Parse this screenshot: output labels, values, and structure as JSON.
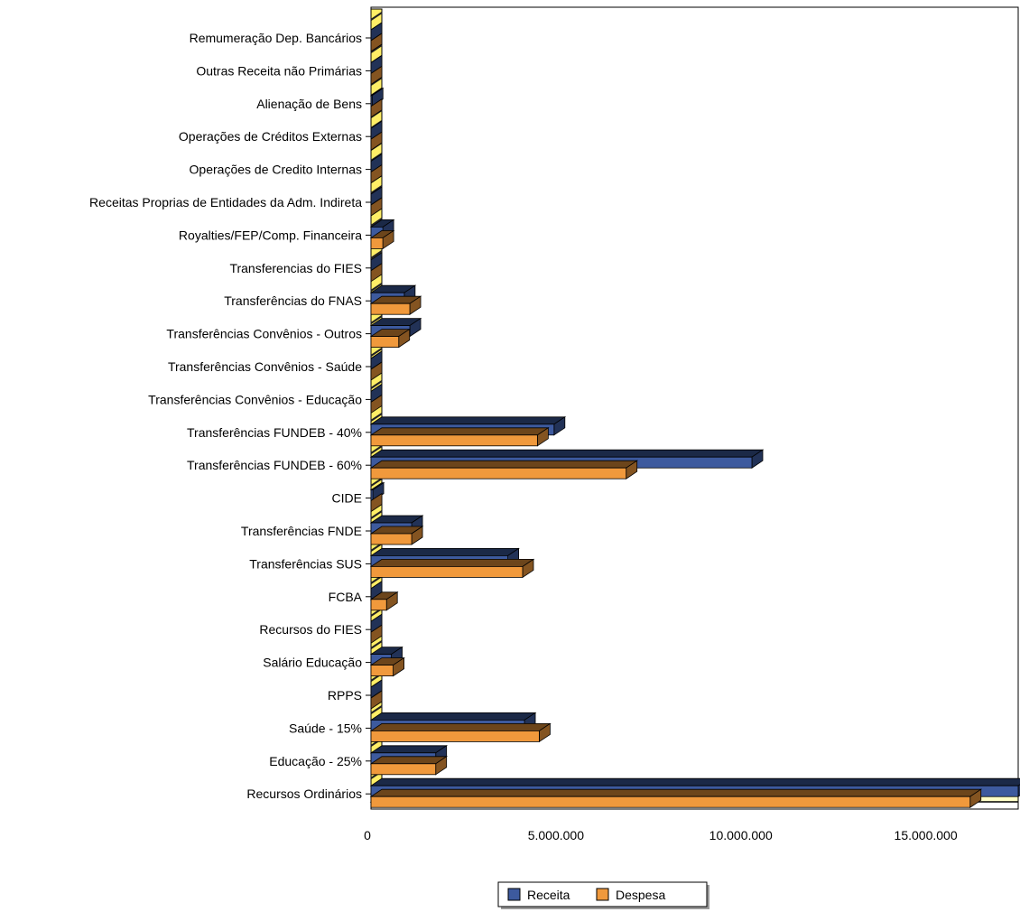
{
  "chart_data": {
    "type": "bar",
    "orientation": "horizontal",
    "categories": [
      "Remumeração  Dep. Bancários",
      "Outras Receita não Primárias",
      "Alienação de Bens",
      "Operações de Créditos Externas",
      "Operações de Credito Internas",
      "Receitas Proprias de Entidades da Adm. Indireta",
      "Royalties/FEP/Comp. Financeira",
      "Transferencias do FIES",
      "Transferências do FNAS",
      "Transferências Convênios - Outros",
      "Transferências Convênios - Saúde",
      "Transferências Convênios - Educação",
      "Transferências FUNDEB - 40%",
      "Transferências FUNDEB - 60%",
      "CIDE",
      "Transferências FNDE",
      "Transferências SUS",
      "FCBA",
      "Recursos do FIES",
      "Salário Educação",
      "RPPS",
      "Saúde - 15%",
      "Educação - 25%",
      "Recursos Ordinários"
    ],
    "series": [
      {
        "name": "Receita",
        "color": "#3d5a9e",
        "values": [
          0,
          0,
          30000,
          0,
          0,
          0,
          320000,
          0,
          900000,
          1050000,
          0,
          0,
          4950000,
          10300000,
          50000,
          1100000,
          3700000,
          0,
          0,
          550000,
          0,
          4150000,
          1750000,
          17500000
        ]
      },
      {
        "name": "Despesa",
        "color": "#f0993c",
        "values": [
          0,
          0,
          0,
          0,
          0,
          0,
          320000,
          0,
          1050000,
          750000,
          0,
          0,
          4500000,
          6900000,
          0,
          1100000,
          4100000,
          420000,
          0,
          600000,
          0,
          4550000,
          1750000,
          16200000
        ]
      }
    ],
    "xlim": [
      0,
      17500000
    ],
    "xticks": [
      0,
      5000000,
      10000000,
      15000000
    ],
    "xtick_labels": [
      "0",
      "5.000.000",
      "10.000.000",
      "15.000.000"
    ],
    "grid": true,
    "legend_position": "bottom-center"
  }
}
